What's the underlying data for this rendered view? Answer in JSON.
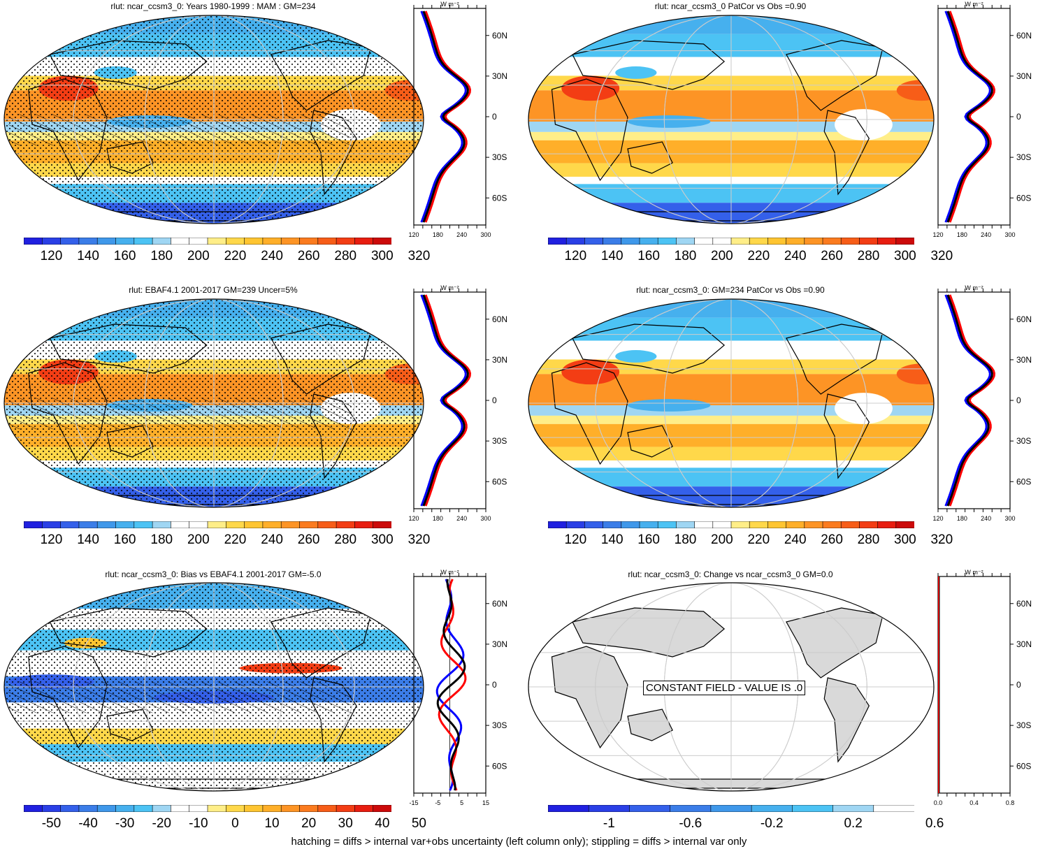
{
  "colors": {
    "full_scale": [
      "#2020e0",
      "#2a3fe6",
      "#3460ea",
      "#3b7de8",
      "#3f98ea",
      "#46b0ee",
      "#4cc3f4",
      "#9fd6f3",
      "#ffffff",
      "#ffffff",
      "#ffee88",
      "#ffd84a",
      "#ffc531",
      "#ffaf29",
      "#fd9425",
      "#fb7b1f",
      "#f75d18",
      "#f33d14",
      "#e81d10",
      "#cc0a0a"
    ],
    "bias_scale": [
      "#2020e0",
      "#2a3fe6",
      "#3460ea",
      "#3b7de8",
      "#3f98ea",
      "#46b0ee",
      "#4cc3f4",
      "#9fd6f3",
      "#ffffff",
      "#ffffff",
      "#ffee88",
      "#ffd84a",
      "#ffc531",
      "#ffaf29",
      "#fd9425",
      "#fb7b1f",
      "#f75d18",
      "#f33d14",
      "#e81d10",
      "#cc0a0a"
    ],
    "change_scale": [
      "#2020e0",
      "#2a3fe6",
      "#3460ea",
      "#3b7de8",
      "#3f98ea",
      "#46b0ee",
      "#4cc3f4",
      "#9fd6f3",
      "#ffffff"
    ],
    "land_gray": "#d9d9d9",
    "line_blue": "#0000ff",
    "line_red": "#ff0000",
    "line_black": "#000000"
  },
  "panels": [
    {
      "title": "rlut: ncar_ccsm3_0: Years 1980-1999 : MAM : GM=234",
      "kind": "full",
      "hatch": true
    },
    {
      "title": "rlut: ncar_ccsm3_0 PatCor vs Obs =0.90",
      "kind": "full",
      "hatch": false
    },
    {
      "title": "rlut: EBAF4.1 2001-2017 GM=239 Uncer=5%",
      "kind": "full",
      "hatch": true
    },
    {
      "title": "rlut: ncar_ccsm3_0: GM=234 PatCor vs Obs =0.90",
      "kind": "full",
      "hatch": false
    },
    {
      "title": "rlut: ncar_ccsm3_0: Bias vs EBAF4.1 2001-2017 GM=-5.0",
      "kind": "bias",
      "hatch": true
    },
    {
      "title": "rlut: ncar_ccsm3_0: Change vs ncar_ccsm3_0 GM=0.0",
      "kind": "change",
      "hatch": false,
      "message": "CONSTANT FIELD - VALUE IS .0"
    }
  ],
  "colorbars": {
    "full_labels": [
      "120",
      "140",
      "160",
      "180",
      "200",
      "220",
      "240",
      "260",
      "280",
      "300",
      "320"
    ],
    "bias_labels": [
      "-50",
      "-40",
      "-30",
      "-20",
      "-10",
      "0",
      "10",
      "20",
      "30",
      "40",
      "50"
    ],
    "change_labels": [
      "-1",
      "-0.6",
      "-0.2",
      "0.2",
      "0.6"
    ]
  },
  "zonal": {
    "unit": "W m⁻²",
    "lat_labels": [
      "60N",
      "30N",
      "0",
      "30S",
      "60S"
    ],
    "full_x_labels": [
      "120",
      "180",
      "240",
      "300"
    ],
    "bias_x_labels": [
      "-15",
      "-5",
      "5",
      "15"
    ],
    "change_x_labels": [
      "0.0",
      "0.4",
      "0.8"
    ]
  },
  "footer": "hatching = diffs > internal var+obs uncertainty (left column only); stippling = diffs > internal var only"
}
